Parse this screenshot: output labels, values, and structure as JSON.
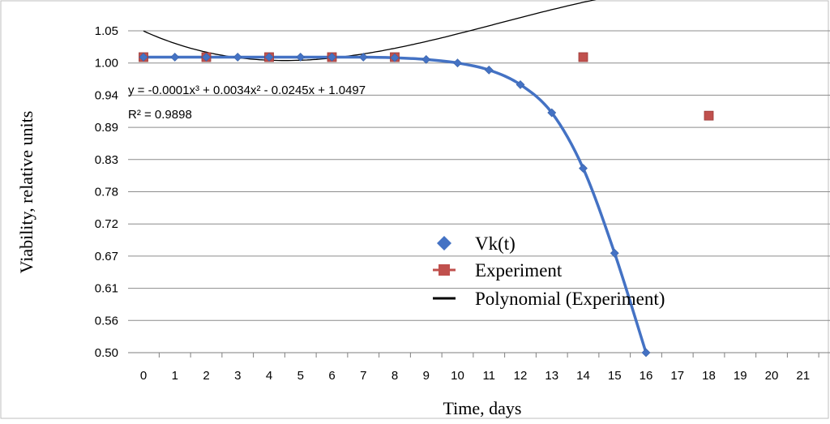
{
  "chart_data": {
    "type": "line",
    "xlabel": "Time, days",
    "ylabel": "Viability, relative units",
    "x_ticks": [
      0,
      1,
      2,
      3,
      4,
      5,
      6,
      7,
      8,
      9,
      10,
      11,
      12,
      13,
      14,
      15,
      16,
      17,
      18,
      19,
      20,
      21
    ],
    "y_ticks": [
      "0.50",
      "0.56",
      "0.61",
      "0.67",
      "0.72",
      "0.78",
      "0.83",
      "0.89",
      "0.94",
      "1.00",
      "1.05"
    ],
    "ylim": [
      0.5,
      1.05
    ],
    "xlim": [
      0,
      21
    ],
    "grid": "horizontal",
    "legend_position": "center",
    "series": [
      {
        "name": "Vk(t)",
        "marker": "diamond",
        "color": "#4472C4",
        "x": [
          0,
          1,
          2,
          3,
          4,
          5,
          6,
          7,
          8,
          9,
          10,
          11,
          12,
          13,
          14,
          15,
          16
        ],
        "y": [
          1.005,
          1.005,
          1.005,
          1.005,
          1.005,
          1.005,
          1.005,
          1.005,
          1.004,
          1.001,
          0.995,
          0.983,
          0.958,
          0.91,
          0.815,
          0.67,
          0.5
        ]
      },
      {
        "name": "Experiment",
        "marker": "square",
        "color": "#C0504D",
        "x": [
          0,
          2,
          4,
          6,
          8,
          14,
          18
        ],
        "y": [
          1.005,
          1.005,
          1.005,
          1.005,
          1.005,
          1.005,
          0.905
        ]
      },
      {
        "name": "Polynomial (Experiment)",
        "marker": "none",
        "color": "#000000",
        "coefficients": [
          -0.0001,
          0.0034,
          -0.0245,
          1.0497
        ],
        "x_range": [
          0,
          21
        ]
      }
    ],
    "annotations": [
      "y = -0.0001x³ + 0.0034x² - 0.0245x + 1.0497",
      "R² = 0.9898"
    ]
  }
}
